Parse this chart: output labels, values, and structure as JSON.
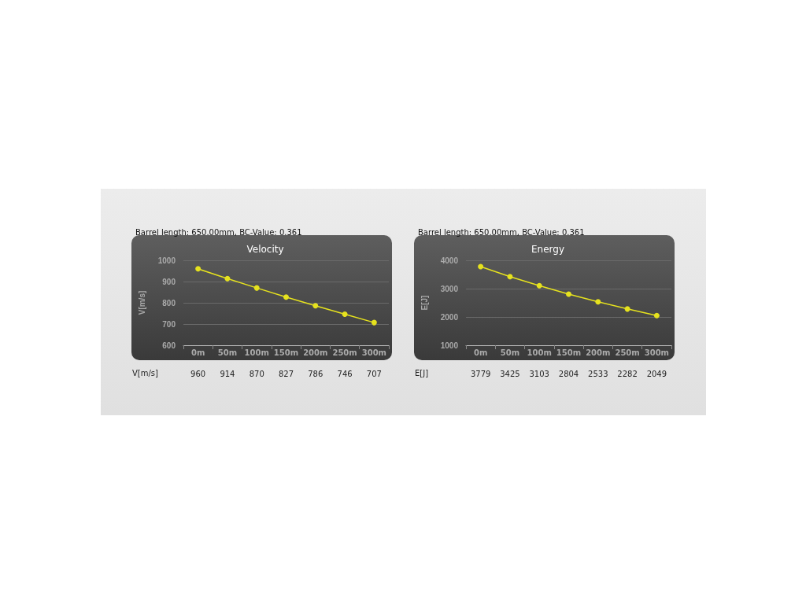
{
  "chart_data": [
    {
      "type": "line",
      "title": "Velocity",
      "subtitle": "Barrel length: 650.00mm, BC-Value: 0.361",
      "ylabel": "V[m/s]",
      "categories": [
        "0m",
        "50m",
        "100m",
        "150m",
        "200m",
        "250m",
        "300m"
      ],
      "series": [
        {
          "color": "#e6e21e",
          "values": [
            960,
            914,
            870,
            827,
            786,
            746,
            707
          ]
        }
      ],
      "ylim": [
        600,
        1000
      ],
      "yticks": [
        600,
        700,
        800,
        900,
        1000
      ],
      "grid": "y",
      "marker": "circle",
      "data_labels": true
    },
    {
      "type": "line",
      "title": "Energy",
      "subtitle": "Barrel length: 650.00mm, BC-Value: 0.361",
      "ylabel": "E[J]",
      "categories": [
        "0m",
        "50m",
        "100m",
        "150m",
        "200m",
        "250m",
        "300m"
      ],
      "series": [
        {
          "color": "#e6e21e",
          "values": [
            3779,
            3425,
            3103,
            2804,
            2533,
            2282,
            2049
          ]
        }
      ],
      "ylim": [
        1000,
        4000
      ],
      "yticks": [
        1000,
        2000,
        3000,
        4000
      ],
      "grid": "y",
      "marker": "circle",
      "data_labels": true
    }
  ]
}
